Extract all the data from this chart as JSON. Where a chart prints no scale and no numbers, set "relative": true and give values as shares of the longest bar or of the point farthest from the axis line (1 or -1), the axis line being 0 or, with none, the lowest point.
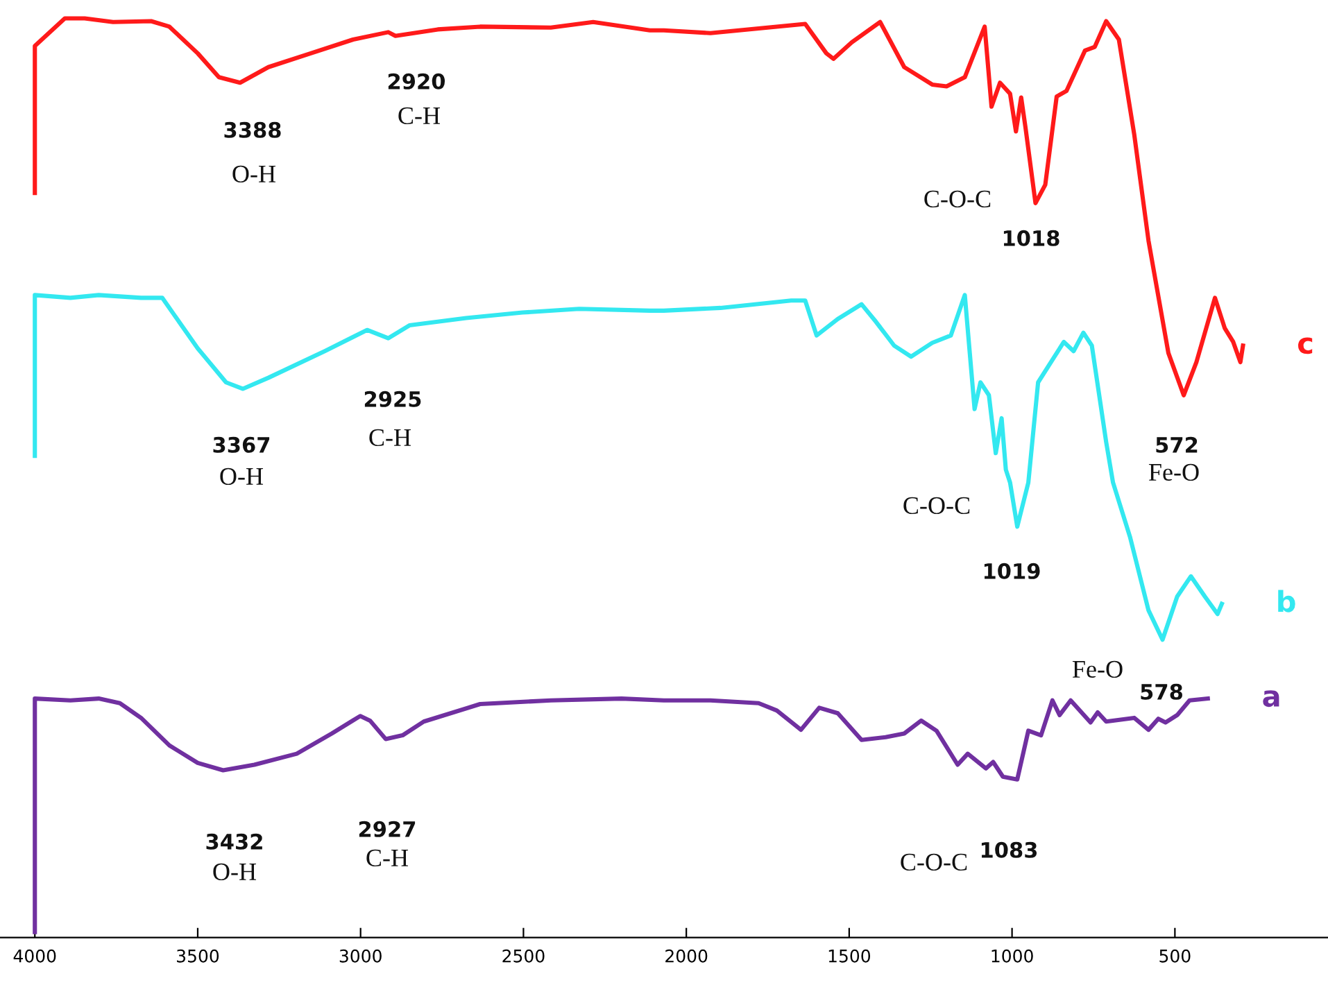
{
  "chart_data": {
    "type": "line",
    "relative": true,
    "xlim": [
      4107,
      30
    ],
    "xticks": [
      4000,
      3500,
      3000,
      2500,
      2000,
      1500,
      1000,
      500
    ],
    "grid": false,
    "legend": false,
    "series": [
      {
        "name": "c",
        "color": "#ff1a1a",
        "x": [
          4000,
          4000,
          3908,
          3847,
          3760,
          3643,
          3587,
          3500,
          3435,
          3370,
          3283,
          3153,
          3023,
          2915,
          2893,
          2763,
          2633,
          2416,
          2286,
          2112,
          2069,
          1926,
          1635,
          1570,
          1548,
          1492,
          1405,
          1331,
          1245,
          1201,
          1145,
          1084,
          1063,
          1037,
          1006,
          988,
          972,
          959,
          928,
          898,
          863,
          833,
          776,
          746,
          711,
          672,
          625,
          581,
          520,
          473,
          434,
          377,
          347,
          321,
          299,
          291
        ],
        "values": [
          0.81,
          0.97,
          1.0,
          1.0,
          0.996,
          0.997,
          0.991,
          0.962,
          0.936,
          0.93,
          0.947,
          0.962,
          0.977,
          0.985,
          0.981,
          0.988,
          0.991,
          0.99,
          0.996,
          0.987,
          0.987,
          0.984,
          0.994,
          0.962,
          0.956,
          0.974,
          0.996,
          0.947,
          0.928,
          0.926,
          0.936,
          0.991,
          0.904,
          0.93,
          0.918,
          0.877,
          0.914,
          0.882,
          0.799,
          0.819,
          0.915,
          0.921,
          0.965,
          0.969,
          0.997,
          0.977,
          0.874,
          0.758,
          0.636,
          0.59,
          0.626,
          0.696,
          0.663,
          0.648,
          0.626,
          0.644
        ]
      },
      {
        "name": "b",
        "color": "#33e8f0",
        "x": [
          4000,
          4000,
          3891,
          3804,
          3674,
          3609,
          3500,
          3413,
          3361,
          3283,
          3110,
          2980,
          2915,
          2850,
          2676,
          2503,
          2329,
          2112,
          2069,
          1895,
          1678,
          1635,
          1600,
          1535,
          1462,
          1418,
          1362,
          1310,
          1245,
          1188,
          1145,
          1115,
          1097,
          1071,
          1050,
          1032,
          1019,
          1006,
          984,
          950,
          920,
          841,
          811,
          781,
          755,
          711,
          690,
          638,
          581,
          538,
          493,
          451,
          408,
          369,
          356
        ],
        "values": [
          0.524,
          0.699,
          0.696,
          0.699,
          0.696,
          0.696,
          0.641,
          0.604,
          0.597,
          0.609,
          0.638,
          0.661,
          0.652,
          0.666,
          0.674,
          0.68,
          0.684,
          0.682,
          0.682,
          0.685,
          0.693,
          0.693,
          0.655,
          0.673,
          0.689,
          0.67,
          0.644,
          0.632,
          0.647,
          0.655,
          0.699,
          0.575,
          0.604,
          0.59,
          0.527,
          0.565,
          0.509,
          0.495,
          0.447,
          0.495,
          0.604,
          0.648,
          0.638,
          0.658,
          0.644,
          0.539,
          0.495,
          0.436,
          0.356,
          0.324,
          0.371,
          0.393,
          0.371,
          0.352,
          0.363
        ]
      },
      {
        "name": "a",
        "color": "#7030a0",
        "x": [
          4000,
          4000,
          3891,
          3804,
          3739,
          3674,
          3587,
          3500,
          3422,
          3326,
          3196,
          3088,
          3001,
          2971,
          2923,
          2871,
          2806,
          2633,
          2416,
          2199,
          2069,
          1926,
          1778,
          1722,
          1648,
          1592,
          1535,
          1462,
          1388,
          1331,
          1279,
          1232,
          1167,
          1136,
          1080,
          1058,
          1028,
          984,
          950,
          911,
          876,
          854,
          820,
          759,
          737,
          711,
          625,
          581,
          551,
          529,
          493,
          455,
          399
        ],
        "values": [
          0.006,
          0.26,
          0.258,
          0.26,
          0.255,
          0.239,
          0.209,
          0.19,
          0.182,
          0.188,
          0.2,
          0.222,
          0.241,
          0.236,
          0.216,
          0.22,
          0.235,
          0.254,
          0.258,
          0.26,
          0.258,
          0.258,
          0.255,
          0.247,
          0.226,
          0.25,
          0.244,
          0.215,
          0.218,
          0.222,
          0.236,
          0.225,
          0.188,
          0.2,
          0.184,
          0.191,
          0.175,
          0.172,
          0.225,
          0.22,
          0.258,
          0.242,
          0.258,
          0.234,
          0.245,
          0.235,
          0.239,
          0.226,
          0.238,
          0.234,
          0.242,
          0.258,
          0.26
        ]
      }
    ],
    "annotations": [
      "3388",
      "O-H",
      "2920",
      "C-H",
      "C-O-C",
      "1018",
      "572",
      "Fe-O",
      "3367",
      "O-H",
      "2925",
      "C-H",
      "C-O-C",
      "1019",
      "Fe-O",
      "578",
      "3432",
      "O-H",
      "2927",
      "C-H",
      "C-O-C",
      "1083"
    ]
  }
}
